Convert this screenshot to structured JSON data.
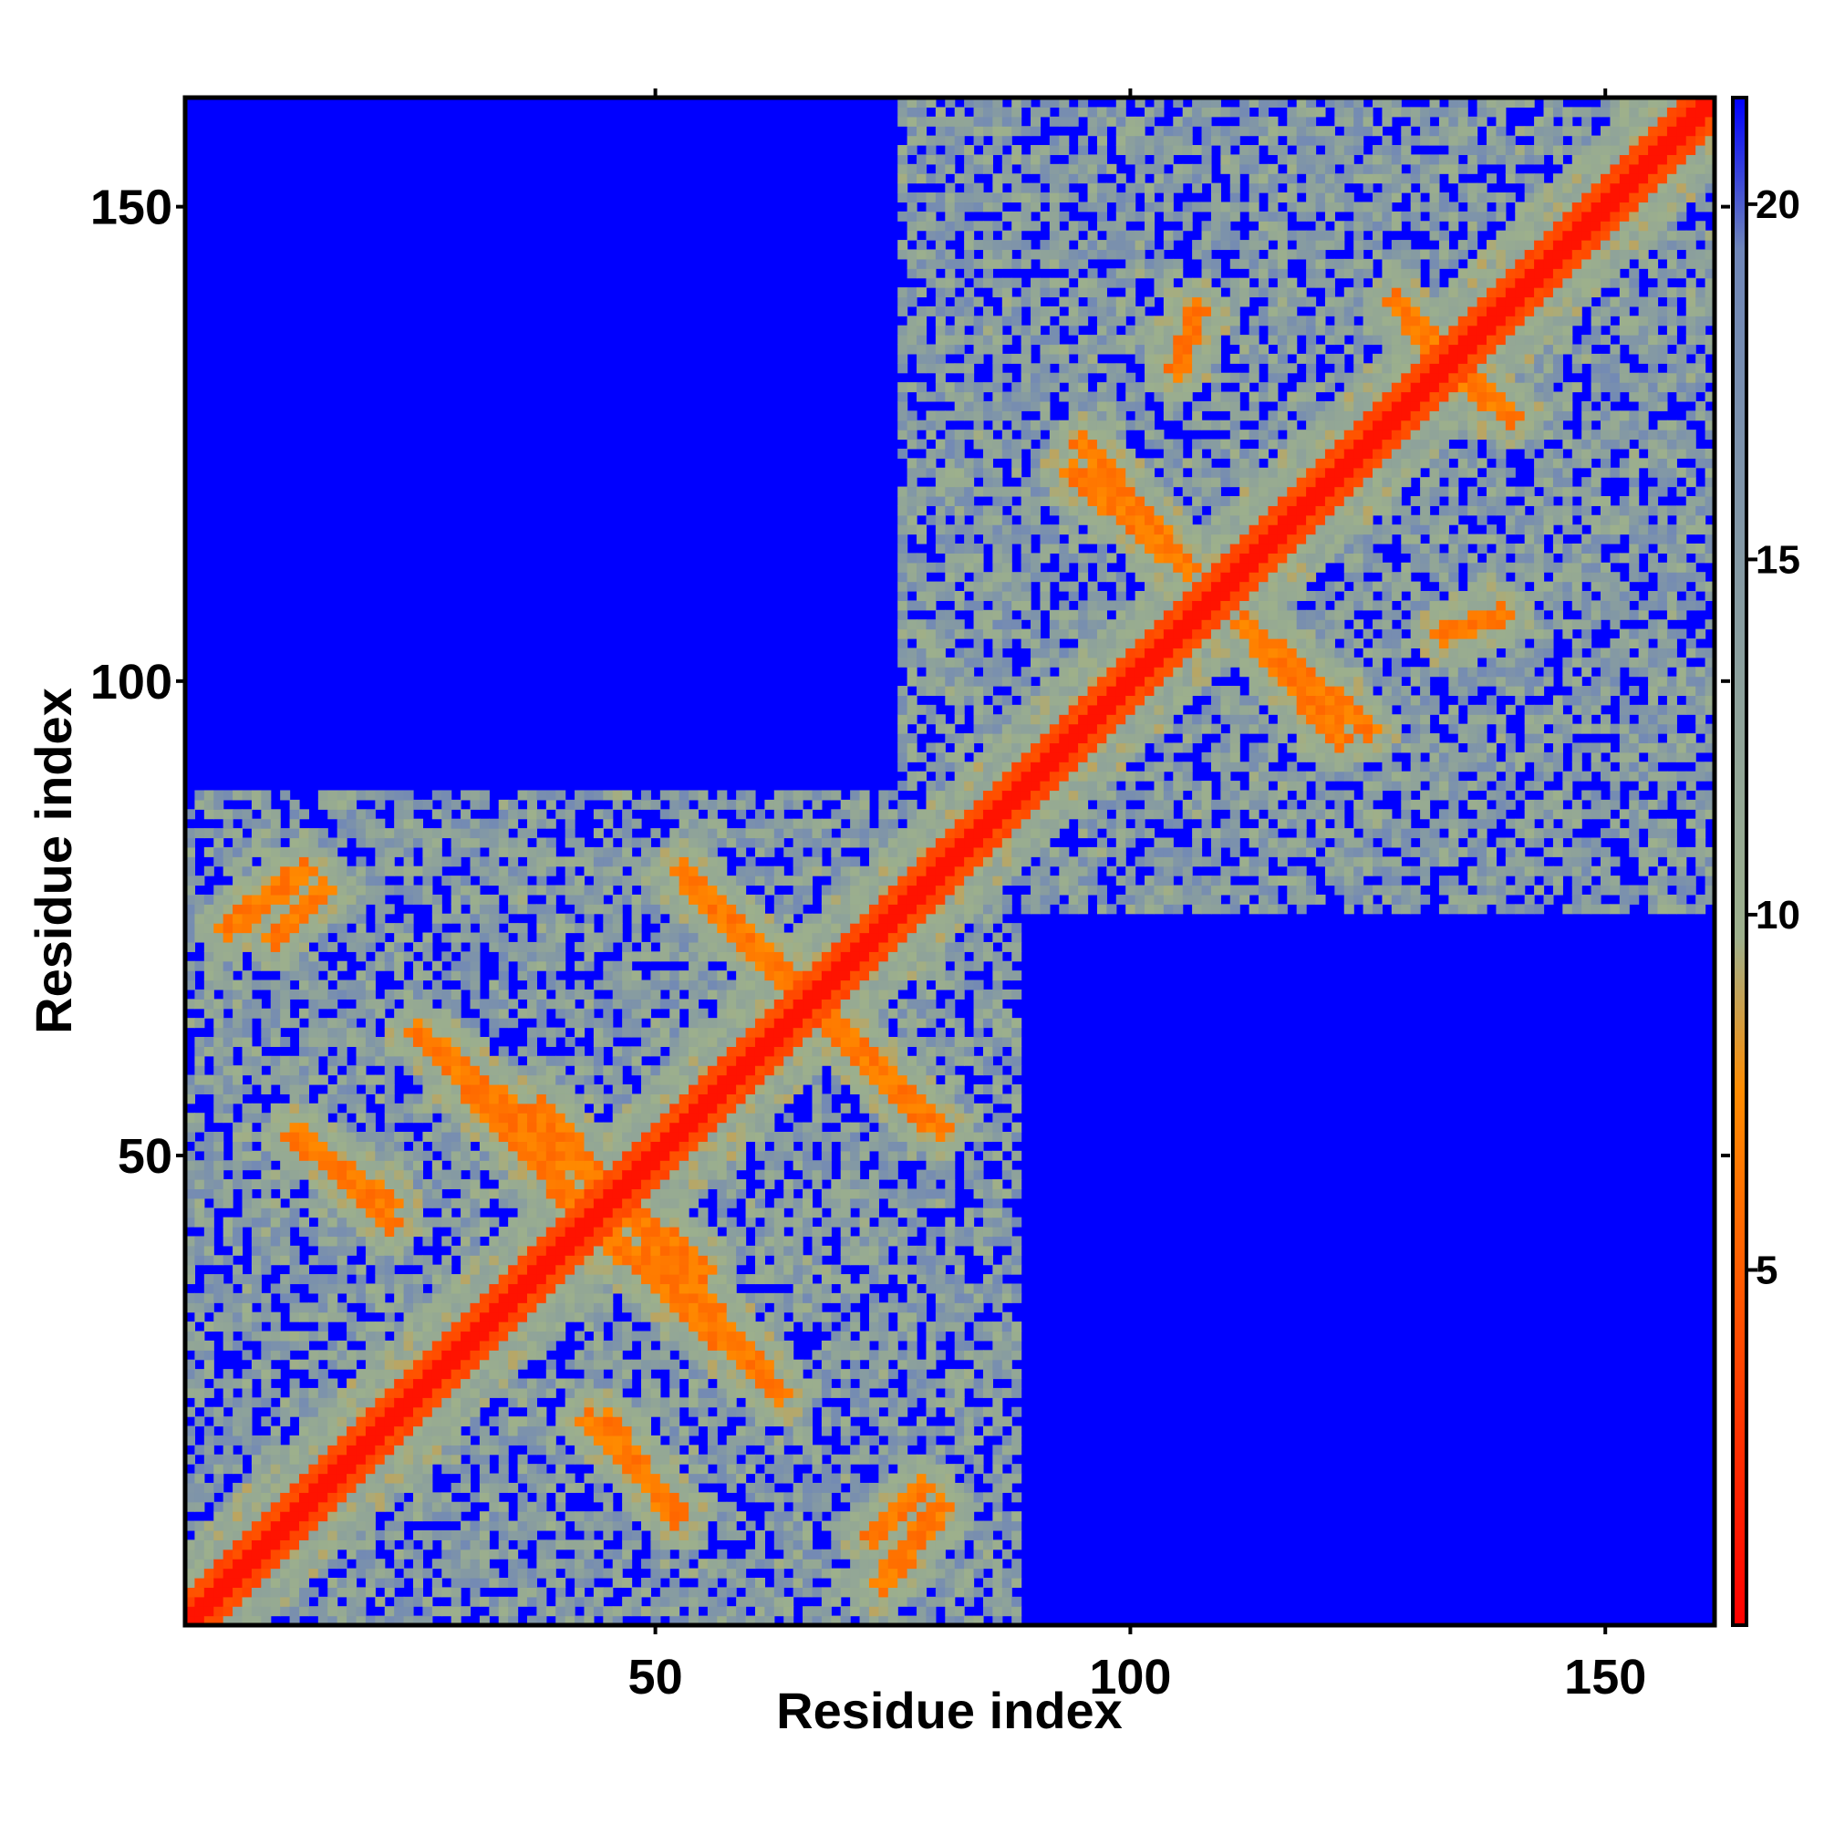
{
  "chart_data": {
    "type": "heatmap",
    "title": "",
    "xlabel": "Residue index",
    "ylabel": "Residue index",
    "xlim": [
      1,
      161
    ],
    "ylim": [
      1,
      161
    ],
    "x_ticks": [
      50,
      100,
      150
    ],
    "y_ticks": [
      50,
      100,
      150
    ],
    "x_tick_labels": [
      "50",
      "100",
      "150"
    ],
    "y_tick_labels": [
      "50",
      "100",
      "150"
    ],
    "colorbar": {
      "range": [
        0,
        21.5
      ],
      "ticks": [
        5,
        10,
        15,
        20
      ],
      "tick_labels": [
        "5",
        "10",
        "15",
        "20"
      ],
      "colors": [
        "#ff0000",
        "#ff8c00",
        "#9db08c",
        "#6f86b8",
        "#0000ff"
      ],
      "stops": [
        0,
        0.35,
        0.45,
        0.9,
        1.0
      ]
    },
    "description_values": {
      "diagonal_distance": 1,
      "background_distance": 21,
      "domains": [
        {
          "start": 1,
          "end": 88
        },
        {
          "start": 76,
          "end": 161
        }
      ],
      "contact_stripes": [
        {
          "x": [
            15,
            10
          ],
          "y": [
            78,
            73
          ]
        },
        {
          "x": [
            25,
            55
          ],
          "y": [
            63,
            38
          ]
        },
        {
          "x": [
            13,
            22
          ],
          "y": [
            52,
            43
          ]
        },
        {
          "x": [
            54,
            80
          ],
          "y": [
            78,
            53
          ]
        },
        {
          "x": [
            40,
            60
          ],
          "y": [
            46,
            28
          ]
        },
        {
          "x": [
            45,
            52
          ],
          "y": [
            22,
            12
          ]
        },
        {
          "x": [
            74,
            80
          ],
          "y": [
            5,
            13
          ]
        },
        {
          "x": [
            95,
            105
          ],
          "y": [
            125,
            113
          ]
        },
        {
          "x": [
            112,
            122
          ],
          "y": [
            106,
            94
          ]
        },
        {
          "x": [
            128,
            137
          ],
          "y": [
            140,
            130
          ]
        },
        {
          "x": [
            105,
            107
          ],
          "y": [
            133,
            139
          ]
        }
      ]
    }
  }
}
